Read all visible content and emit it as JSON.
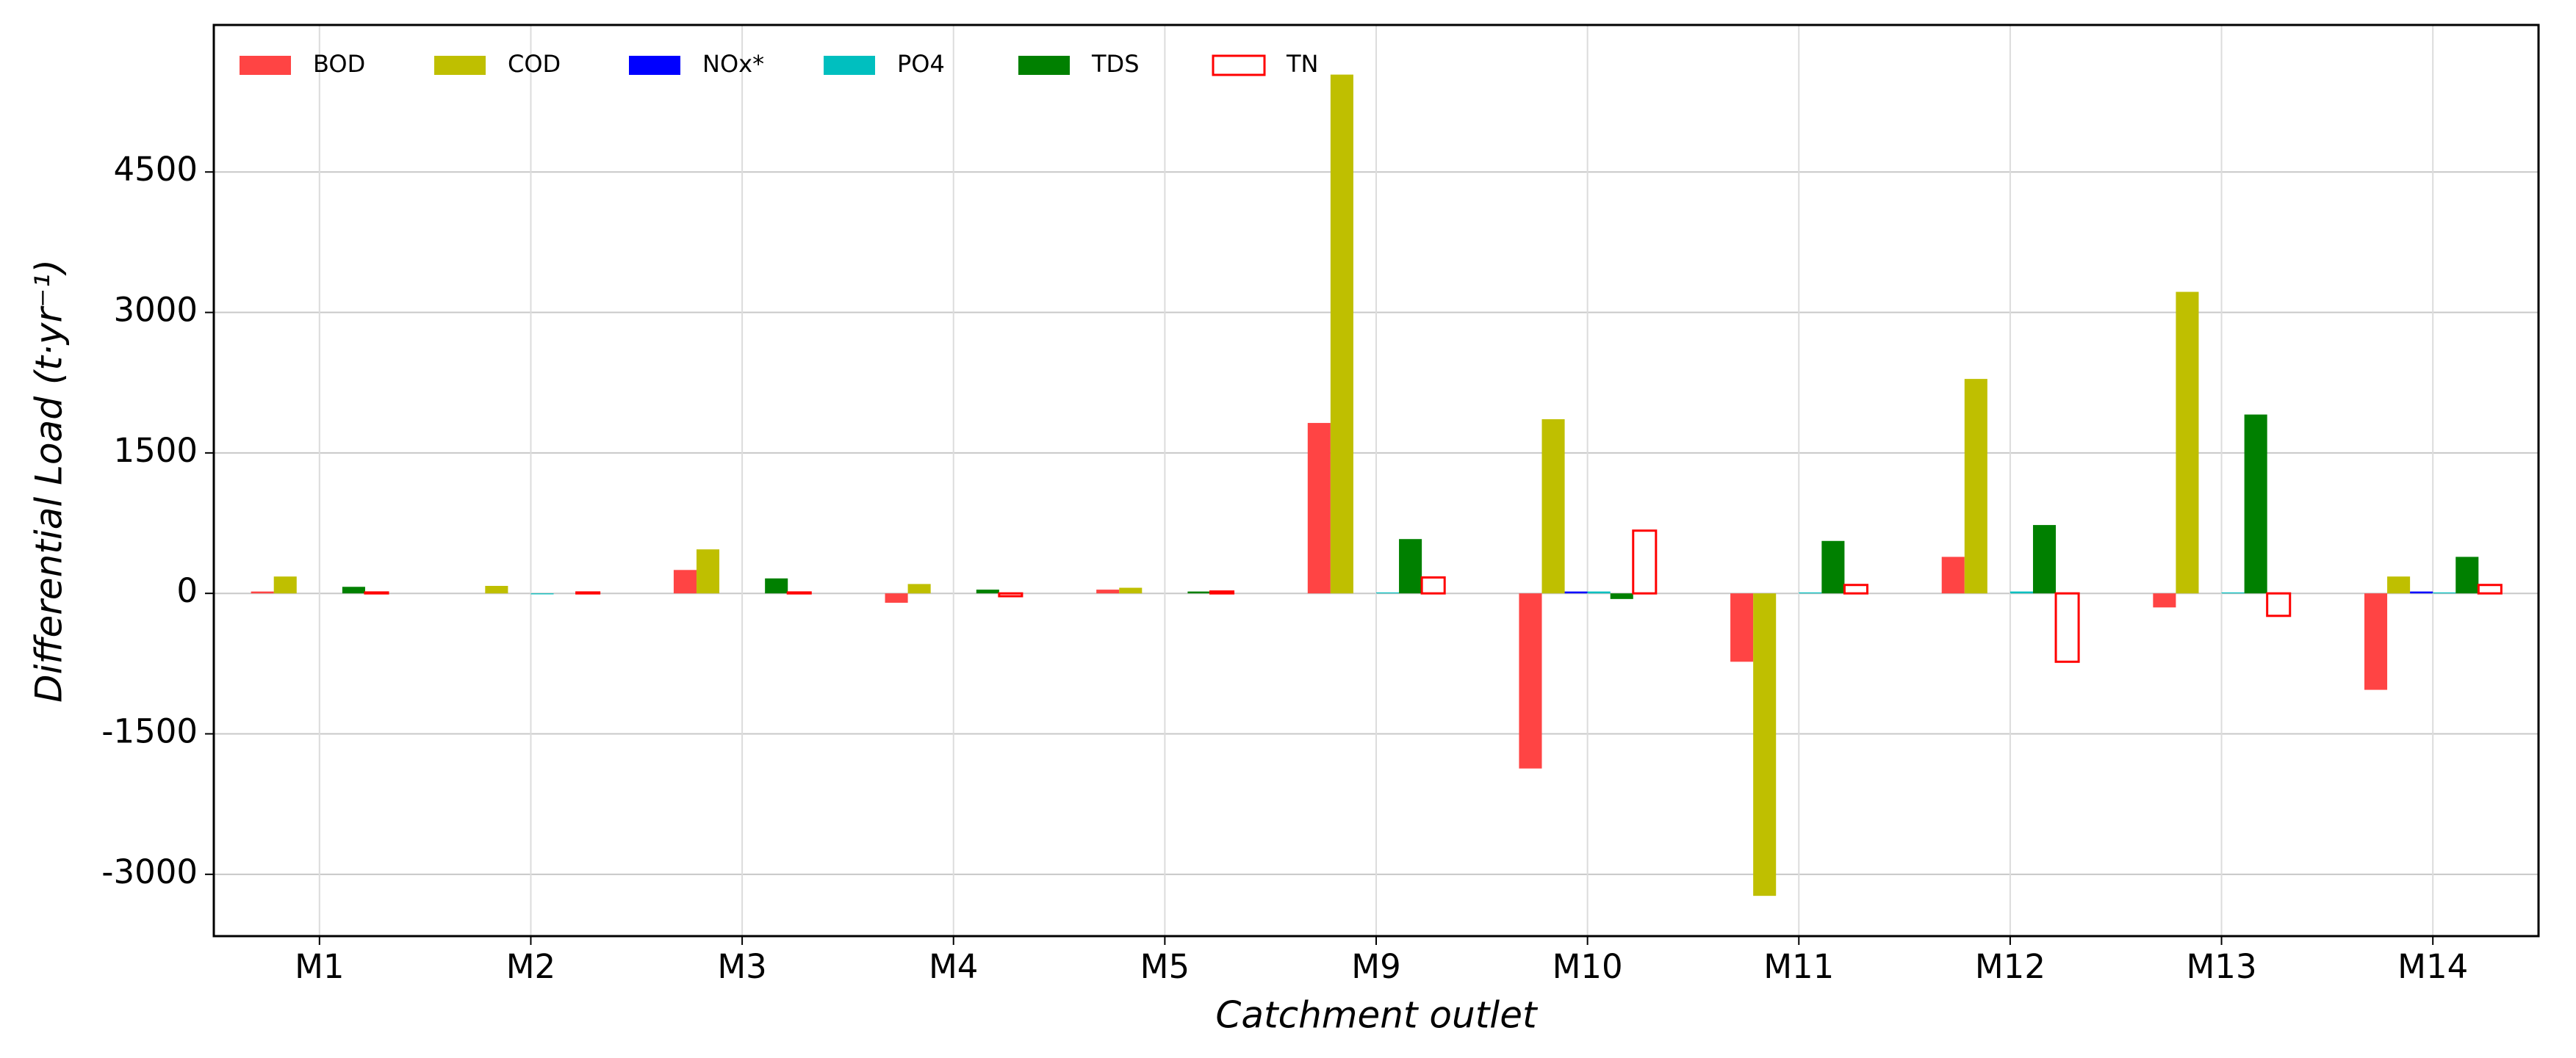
{
  "chart_data": {
    "type": "bar",
    "xlabel": "Catchment outlet",
    "ylabel": "Differential Load (t·yr⁻¹)",
    "categories": [
      "M1",
      "M2",
      "M3",
      "M4",
      "M5",
      "M9",
      "M10",
      "M11",
      "M12",
      "M13",
      "M14"
    ],
    "series": [
      {
        "name": "BOD",
        "color": "#ff4444",
        "filled": true,
        "values": [
          20,
          0,
          250,
          -100,
          40,
          1820,
          -1870,
          -730,
          390,
          -150,
          -1030
        ]
      },
      {
        "name": "COD",
        "color": "#bfbf00",
        "filled": true,
        "values": [
          180,
          80,
          470,
          100,
          60,
          5540,
          1860,
          -3230,
          2290,
          3220,
          180
        ]
      },
      {
        "name": "NOx*",
        "color": "#0000ff",
        "filled": true,
        "values": [
          0,
          0,
          0,
          0,
          0,
          0,
          20,
          0,
          0,
          0,
          20
        ]
      },
      {
        "name": "PO4",
        "color": "#00bfbf",
        "filled": true,
        "values": [
          0,
          -10,
          0,
          0,
          0,
          10,
          20,
          10,
          20,
          10,
          10
        ]
      },
      {
        "name": "TDS",
        "color": "#008000",
        "filled": true,
        "values": [
          70,
          0,
          160,
          40,
          20,
          580,
          -60,
          560,
          730,
          1910,
          390
        ]
      },
      {
        "name": "TN",
        "color": "#ff0000",
        "filled": false,
        "values": [
          10,
          10,
          10,
          -30,
          20,
          170,
          670,
          90,
          -730,
          -240,
          90
        ]
      }
    ],
    "ylim": [
      -3660,
      6070
    ],
    "yticks": [
      -3000,
      -1500,
      0,
      1500,
      3000,
      4500
    ],
    "grid": true,
    "legend": "top-left"
  }
}
